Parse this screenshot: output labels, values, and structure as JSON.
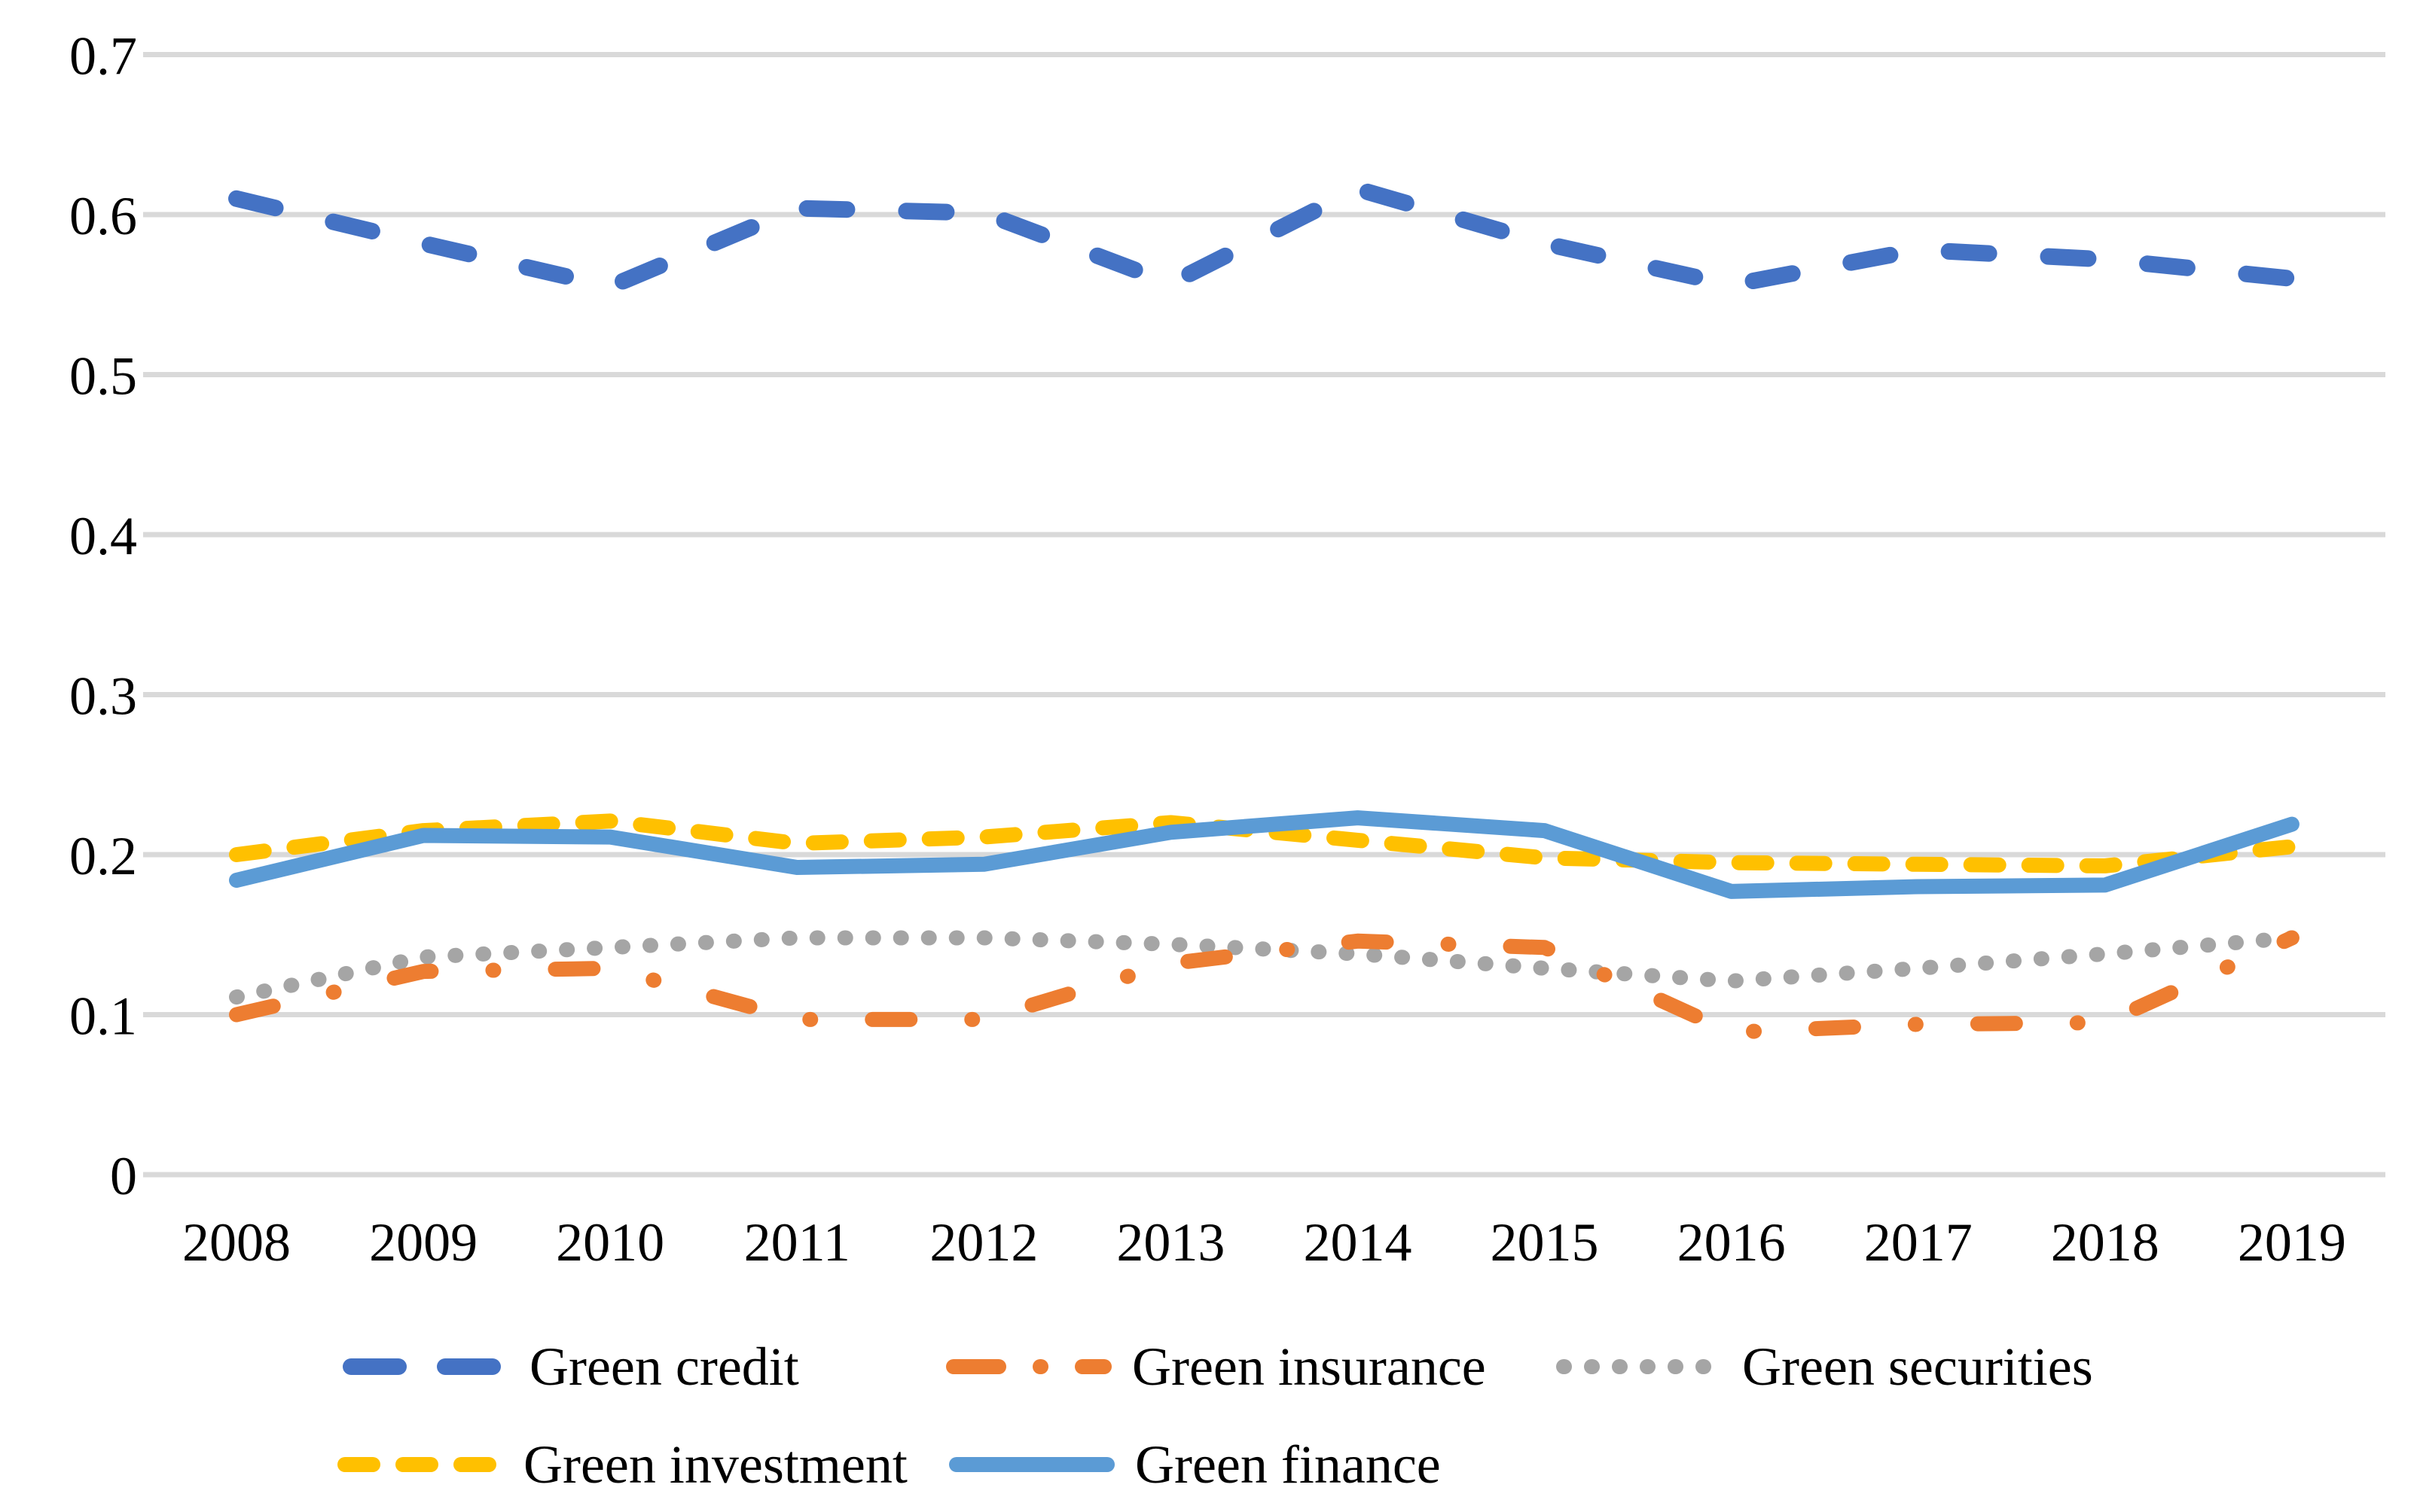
{
  "chart_data": {
    "type": "line",
    "title": "",
    "xlabel": "",
    "ylabel": "",
    "categories": [
      "2008",
      "2009",
      "2010",
      "2011",
      "2012",
      "2013",
      "2014",
      "2015",
      "2016",
      "2017",
      "2018",
      "2019"
    ],
    "y_axis": {
      "min": 0,
      "max": 0.7,
      "tick_labels": [
        "0",
        "0.1",
        "0.2",
        "0.3",
        "0.4",
        "0.5",
        "0.6",
        "0.7"
      ],
      "grid": "horizontal",
      "gridline_color": "#D9D9D9",
      "label_color": "#000000"
    },
    "legend_position": "bottom",
    "legend_rows": [
      [
        "Green credit",
        "Green insurance",
        "Green securities"
      ],
      [
        "Green investment",
        "Green finance"
      ]
    ],
    "series": [
      {
        "name": "Green credit",
        "color": "#4472C4",
        "line_style": "dash",
        "values": [
          0.61,
          0.582,
          0.555,
          0.604,
          0.601,
          0.557,
          0.616,
          0.582,
          0.556,
          0.578,
          0.572,
          0.56
        ]
      },
      {
        "name": "Green insurance",
        "color": "#ED7D31",
        "line_style": "dash-dot",
        "values": [
          0.1,
          0.127,
          0.129,
          0.097,
          0.097,
          0.132,
          0.146,
          0.142,
          0.089,
          0.094,
          0.095,
          0.148
        ]
      },
      {
        "name": "Green securities",
        "color": "#A5A5A5",
        "line_style": "dot",
        "values": [
          0.111,
          0.136,
          0.142,
          0.148,
          0.148,
          0.144,
          0.138,
          0.129,
          0.121,
          0.129,
          0.138,
          0.148
        ]
      },
      {
        "name": "Green investment",
        "color": "#FFC000",
        "line_style": "short-dash",
        "values": [
          0.2,
          0.215,
          0.221,
          0.207,
          0.211,
          0.22,
          0.209,
          0.198,
          0.195,
          0.194,
          0.193,
          0.205
        ]
      },
      {
        "name": "Green finance",
        "color": "#5B9BD5",
        "line_style": "solid",
        "values": [
          0.184,
          0.212,
          0.211,
          0.192,
          0.194,
          0.214,
          0.223,
          0.215,
          0.177,
          0.18,
          0.181,
          0.219
        ]
      }
    ]
  }
}
